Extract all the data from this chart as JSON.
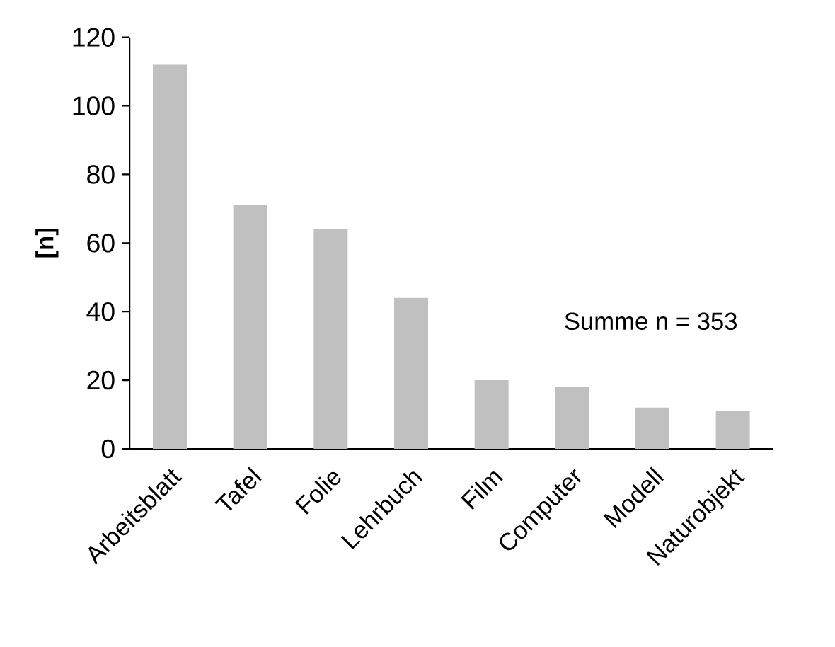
{
  "chart_data": {
    "type": "bar",
    "ylabel": "[n]",
    "categories": [
      "Arbeitsblatt",
      "Tafel",
      "Folie",
      "Lehrbuch",
      "Film",
      "Computer",
      "Modell",
      "Naturobjekt"
    ],
    "values": [
      112,
      71,
      64,
      44,
      20,
      18,
      12,
      11
    ],
    "color": "#c0c0c0",
    "ylim": [
      0,
      120
    ],
    "yticks": [
      0,
      20,
      40,
      60,
      80,
      100,
      120
    ],
    "annotations": [
      "Summe n = 353"
    ]
  }
}
